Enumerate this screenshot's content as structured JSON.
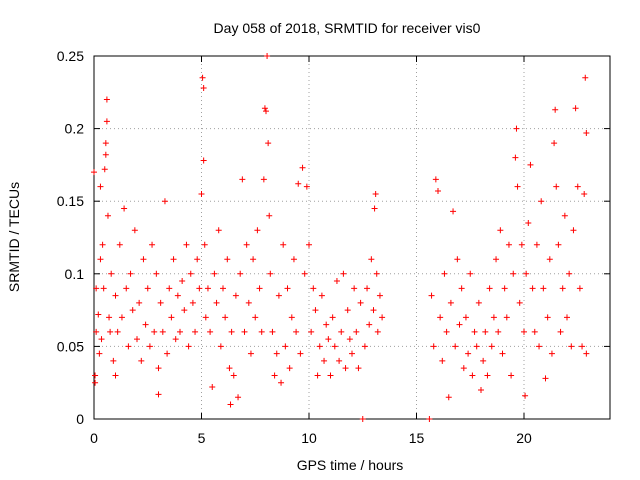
{
  "chart_data": {
    "type": "scatter",
    "title": "Day 058 of 2018, SRMTID for receiver vis0",
    "xlabel": "GPS time / hours",
    "ylabel": "SRMTID / TECUs",
    "xlim": [
      0,
      24
    ],
    "ylim": [
      0,
      0.25
    ],
    "xticks": [
      0,
      5,
      10,
      15,
      20
    ],
    "xtick_labels": [
      "0",
      "5",
      "10",
      "15",
      "20"
    ],
    "yticks": [
      0,
      0.05,
      0.1,
      0.15,
      0.2,
      0.25
    ],
    "ytick_labels": [
      "0",
      "0.05",
      "0.1",
      "0.15",
      "0.2",
      "0.25"
    ],
    "grid": true,
    "marker": "+",
    "color": "#ff0000",
    "series": [
      {
        "name": "vis0",
        "points": [
          [
            0.0,
            0.17
          ],
          [
            0.05,
            0.03
          ],
          [
            0.05,
            0.025
          ],
          [
            0.1,
            0.09
          ],
          [
            0.1,
            0.06
          ],
          [
            0.2,
            0.072
          ],
          [
            0.25,
            0.045
          ],
          [
            0.3,
            0.16
          ],
          [
            0.3,
            0.11
          ],
          [
            0.35,
            0.055
          ],
          [
            0.4,
            0.12
          ],
          [
            0.45,
            0.09
          ],
          [
            0.5,
            0.172
          ],
          [
            0.55,
            0.182
          ],
          [
            0.55,
            0.19
          ],
          [
            0.6,
            0.22
          ],
          [
            0.6,
            0.205
          ],
          [
            0.65,
            0.14
          ],
          [
            0.7,
            0.07
          ],
          [
            0.75,
            0.06
          ],
          [
            0.8,
            0.1
          ],
          [
            0.9,
            0.04
          ],
          [
            1.0,
            0.085
          ],
          [
            1.0,
            0.03
          ],
          [
            1.1,
            0.06
          ],
          [
            1.2,
            0.12
          ],
          [
            1.3,
            0.07
          ],
          [
            1.4,
            0.145
          ],
          [
            1.5,
            0.09
          ],
          [
            1.6,
            0.05
          ],
          [
            1.7,
            0.1
          ],
          [
            1.8,
            0.075
          ],
          [
            1.9,
            0.13
          ],
          [
            2.0,
            0.055
          ],
          [
            2.1,
            0.08
          ],
          [
            2.2,
            0.04
          ],
          [
            2.3,
            0.11
          ],
          [
            2.4,
            0.065
          ],
          [
            2.5,
            0.09
          ],
          [
            2.6,
            0.05
          ],
          [
            2.7,
            0.12
          ],
          [
            2.8,
            0.06
          ],
          [
            2.9,
            0.1
          ],
          [
            3.0,
            0.035
          ],
          [
            3.0,
            0.017
          ],
          [
            3.1,
            0.08
          ],
          [
            3.2,
            0.06
          ],
          [
            3.3,
            0.15
          ],
          [
            3.4,
            0.045
          ],
          [
            3.5,
            0.09
          ],
          [
            3.6,
            0.07
          ],
          [
            3.7,
            0.11
          ],
          [
            3.8,
            0.055
          ],
          [
            3.9,
            0.085
          ],
          [
            4.0,
            0.06
          ],
          [
            4.1,
            0.095
          ],
          [
            4.2,
            0.075
          ],
          [
            4.3,
            0.12
          ],
          [
            4.4,
            0.05
          ],
          [
            4.5,
            0.1
          ],
          [
            4.6,
            0.08
          ],
          [
            4.7,
            0.06
          ],
          [
            4.8,
            0.11
          ],
          [
            4.9,
            0.09
          ],
          [
            5.0,
            0.155
          ],
          [
            5.05,
            0.235
          ],
          [
            5.1,
            0.228
          ],
          [
            5.1,
            0.178
          ],
          [
            5.15,
            0.12
          ],
          [
            5.2,
            0.07
          ],
          [
            5.3,
            0.09
          ],
          [
            5.4,
            0.06
          ],
          [
            5.5,
            0.022
          ],
          [
            5.6,
            0.1
          ],
          [
            5.7,
            0.08
          ],
          [
            5.8,
            0.13
          ],
          [
            5.9,
            0.05
          ],
          [
            6.0,
            0.09
          ],
          [
            6.1,
            0.07
          ],
          [
            6.2,
            0.11
          ],
          [
            6.3,
            0.035
          ],
          [
            6.35,
            0.01
          ],
          [
            6.4,
            0.06
          ],
          [
            6.5,
            0.03
          ],
          [
            6.6,
            0.085
          ],
          [
            6.7,
            0.015
          ],
          [
            6.8,
            0.1
          ],
          [
            6.9,
            0.165
          ],
          [
            7.0,
            0.06
          ],
          [
            7.1,
            0.12
          ],
          [
            7.2,
            0.08
          ],
          [
            7.3,
            0.045
          ],
          [
            7.4,
            0.11
          ],
          [
            7.5,
            0.07
          ],
          [
            7.6,
            0.13
          ],
          [
            7.7,
            0.09
          ],
          [
            7.8,
            0.06
          ],
          [
            7.9,
            0.165
          ],
          [
            7.95,
            0.214
          ],
          [
            8.0,
            0.212
          ],
          [
            8.05,
            0.25
          ],
          [
            8.1,
            0.19
          ],
          [
            8.15,
            0.14
          ],
          [
            8.2,
            0.1
          ],
          [
            8.3,
            0.06
          ],
          [
            8.4,
            0.03
          ],
          [
            8.5,
            0.045
          ],
          [
            8.6,
            0.085
          ],
          [
            8.7,
            0.025
          ],
          [
            8.8,
            0.12
          ],
          [
            8.9,
            0.05
          ],
          [
            9.0,
            0.09
          ],
          [
            9.1,
            0.035
          ],
          [
            9.2,
            0.07
          ],
          [
            9.3,
            0.11
          ],
          [
            9.4,
            0.06
          ],
          [
            9.5,
            0.162
          ],
          [
            9.6,
            0.045
          ],
          [
            9.7,
            0.173
          ],
          [
            9.8,
            0.1
          ],
          [
            9.9,
            0.16
          ],
          [
            10.0,
            0.12
          ],
          [
            10.1,
            0.06
          ],
          [
            10.2,
            0.09
          ],
          [
            10.3,
            0.075
          ],
          [
            10.4,
            0.03
          ],
          [
            10.5,
            0.05
          ],
          [
            10.6,
            0.085
          ],
          [
            10.7,
            0.04
          ],
          [
            10.8,
            0.065
          ],
          [
            10.9,
            0.055
          ],
          [
            11.0,
            0.03
          ],
          [
            11.1,
            0.07
          ],
          [
            11.2,
            0.05
          ],
          [
            11.3,
            0.095
          ],
          [
            11.4,
            0.04
          ],
          [
            11.5,
            0.06
          ],
          [
            11.6,
            0.1
          ],
          [
            11.7,
            0.035
          ],
          [
            11.8,
            0.075
          ],
          [
            11.9,
            0.055
          ],
          [
            12.0,
            0.045
          ],
          [
            12.1,
            0.09
          ],
          [
            12.2,
            0.06
          ],
          [
            12.3,
            0.035
          ],
          [
            12.4,
            0.08
          ],
          [
            12.6,
            0.05
          ],
          [
            12.7,
            0.09
          ],
          [
            12.8,
            0.065
          ],
          [
            12.9,
            0.11
          ],
          [
            13.0,
            0.075
          ],
          [
            13.05,
            0.145
          ],
          [
            13.1,
            0.155
          ],
          [
            13.15,
            0.1
          ],
          [
            13.2,
            0.06
          ],
          [
            13.3,
            0.085
          ],
          [
            13.4,
            0.07
          ],
          [
            15.7,
            0.085
          ],
          [
            15.8,
            0.05
          ],
          [
            15.9,
            0.165
          ],
          [
            16.0,
            0.157
          ],
          [
            16.1,
            0.07
          ],
          [
            16.2,
            0.04
          ],
          [
            16.3,
            0.1
          ],
          [
            16.4,
            0.06
          ],
          [
            16.5,
            0.015
          ],
          [
            16.6,
            0.08
          ],
          [
            16.7,
            0.143
          ],
          [
            16.8,
            0.05
          ],
          [
            16.9,
            0.11
          ],
          [
            17.0,
            0.065
          ],
          [
            17.1,
            0.09
          ],
          [
            17.2,
            0.035
          ],
          [
            17.3,
            0.07
          ],
          [
            17.4,
            0.045
          ],
          [
            17.5,
            0.1
          ],
          [
            17.6,
            0.03
          ],
          [
            17.7,
            0.06
          ],
          [
            17.8,
            0.05
          ],
          [
            17.9,
            0.08
          ],
          [
            18.0,
            0.02
          ],
          [
            18.1,
            0.04
          ],
          [
            18.2,
            0.06
          ],
          [
            18.3,
            0.03
          ],
          [
            18.4,
            0.09
          ],
          [
            18.5,
            0.05
          ],
          [
            18.6,
            0.07
          ],
          [
            18.7,
            0.11
          ],
          [
            18.8,
            0.06
          ],
          [
            18.9,
            0.13
          ],
          [
            19.0,
            0.045
          ],
          [
            19.1,
            0.09
          ],
          [
            19.2,
            0.07
          ],
          [
            19.3,
            0.12
          ],
          [
            19.4,
            0.03
          ],
          [
            19.5,
            0.1
          ],
          [
            19.6,
            0.18
          ],
          [
            19.65,
            0.2
          ],
          [
            19.7,
            0.16
          ],
          [
            19.8,
            0.08
          ],
          [
            19.9,
            0.12
          ],
          [
            20.0,
            0.06
          ],
          [
            20.05,
            0.016
          ],
          [
            20.1,
            0.1
          ],
          [
            20.2,
            0.135
          ],
          [
            20.3,
            0.175
          ],
          [
            20.4,
            0.09
          ],
          [
            20.5,
            0.06
          ],
          [
            20.6,
            0.12
          ],
          [
            20.7,
            0.05
          ],
          [
            20.8,
            0.15
          ],
          [
            20.9,
            0.09
          ],
          [
            21.0,
            0.028
          ],
          [
            21.1,
            0.07
          ],
          [
            21.2,
            0.11
          ],
          [
            21.3,
            0.045
          ],
          [
            21.4,
            0.19
          ],
          [
            21.45,
            0.213
          ],
          [
            21.5,
            0.16
          ],
          [
            21.6,
            0.12
          ],
          [
            21.7,
            0.06
          ],
          [
            21.8,
            0.09
          ],
          [
            21.9,
            0.14
          ],
          [
            22.0,
            0.07
          ],
          [
            22.1,
            0.1
          ],
          [
            22.2,
            0.05
          ],
          [
            22.3,
            0.13
          ],
          [
            22.4,
            0.214
          ],
          [
            22.5,
            0.16
          ],
          [
            22.6,
            0.09
          ],
          [
            22.7,
            0.05
          ],
          [
            22.8,
            0.155
          ],
          [
            22.85,
            0.235
          ],
          [
            22.9,
            0.197
          ],
          [
            22.9,
            0.045
          ],
          [
            12.5,
            0.0
          ],
          [
            15.6,
            0.0
          ]
        ]
      }
    ]
  }
}
